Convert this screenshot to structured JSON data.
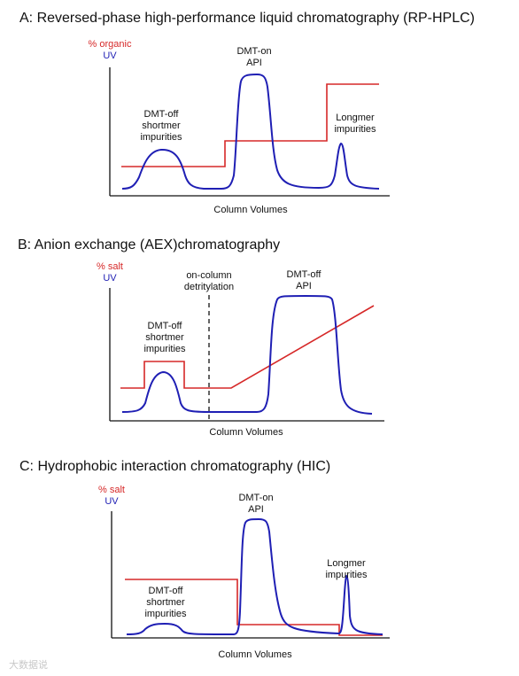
{
  "watermark": "大数据说",
  "colors": {
    "red": "#d62828",
    "blue": "#1f1fb4",
    "axis": "#111111"
  },
  "panels": [
    {
      "title": "A: Reversed-phase high-performance liquid chromatography (RP-HPLC)",
      "ylabel_red": "% organic",
      "ylabel_blue": "UV",
      "xlabel": "Column Volumes",
      "annotations": [
        {
          "lines": [
            "DMT-off",
            "shortmer",
            "impurities"
          ]
        },
        {
          "lines": [
            "DMT-on",
            "API"
          ]
        },
        {
          "lines": [
            "Longmer",
            "impurities"
          ]
        }
      ]
    },
    {
      "title": "B: Anion exchange (AEX)chromatography",
      "ylabel_red": "% salt",
      "ylabel_blue": "UV",
      "xlabel": "Column Volumes",
      "annotations": [
        {
          "lines": [
            "on-column",
            "detritylation"
          ]
        },
        {
          "lines": [
            "DMT-off",
            "API"
          ]
        },
        {
          "lines": [
            "DMT-off",
            "shortmer",
            "impurities"
          ]
        }
      ]
    },
    {
      "title": "C: Hydrophobic interaction chromatography (HIC)",
      "ylabel_red": "% salt",
      "ylabel_blue": "UV",
      "xlabel": "Column Volumes",
      "annotations": [
        {
          "lines": [
            "DMT-on",
            "API"
          ]
        },
        {
          "lines": [
            "Longmer",
            "impurities"
          ]
        },
        {
          "lines": [
            "DMT-off",
            "shortmer",
            "impurities"
          ]
        }
      ]
    }
  ]
}
